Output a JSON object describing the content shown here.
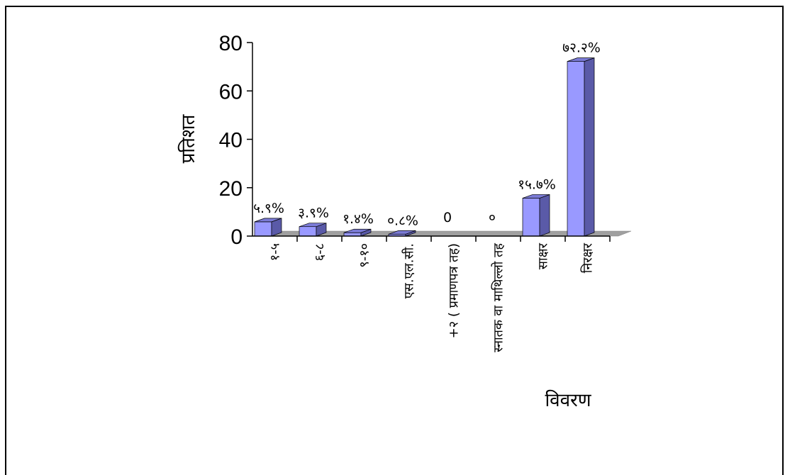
{
  "chart_data": {
    "type": "bar",
    "title": "",
    "ylabel": "प्रतिशत",
    "xlabel": "विवरण",
    "ylim": [
      0,
      80
    ],
    "yticks": [
      "0",
      "20",
      "40",
      "60",
      "80"
    ],
    "categories": [
      "१-५",
      "६-८",
      "९-१०",
      "एस.एल.सी.",
      "+२ ( प्रमाणपत्र तह)",
      "स्नातक वा माथिल्लो तह",
      "साक्षर",
      "निरक्षर"
    ],
    "values": [
      5.9,
      3.9,
      1.4,
      0.8,
      0,
      0,
      15.7,
      72.2
    ],
    "data_labels": [
      "५.९%",
      "३.९%",
      "१.४%",
      "०.८%",
      "0",
      "०",
      "१५.७%",
      "७२.२%"
    ],
    "grid": false,
    "legend": "none",
    "colors": {
      "bar_front": "#9999ff",
      "bar_side": "#5a5aa8",
      "bar_top": "#7b7bd6",
      "floor": "#a0a0a0",
      "axis": "#000000"
    }
  }
}
